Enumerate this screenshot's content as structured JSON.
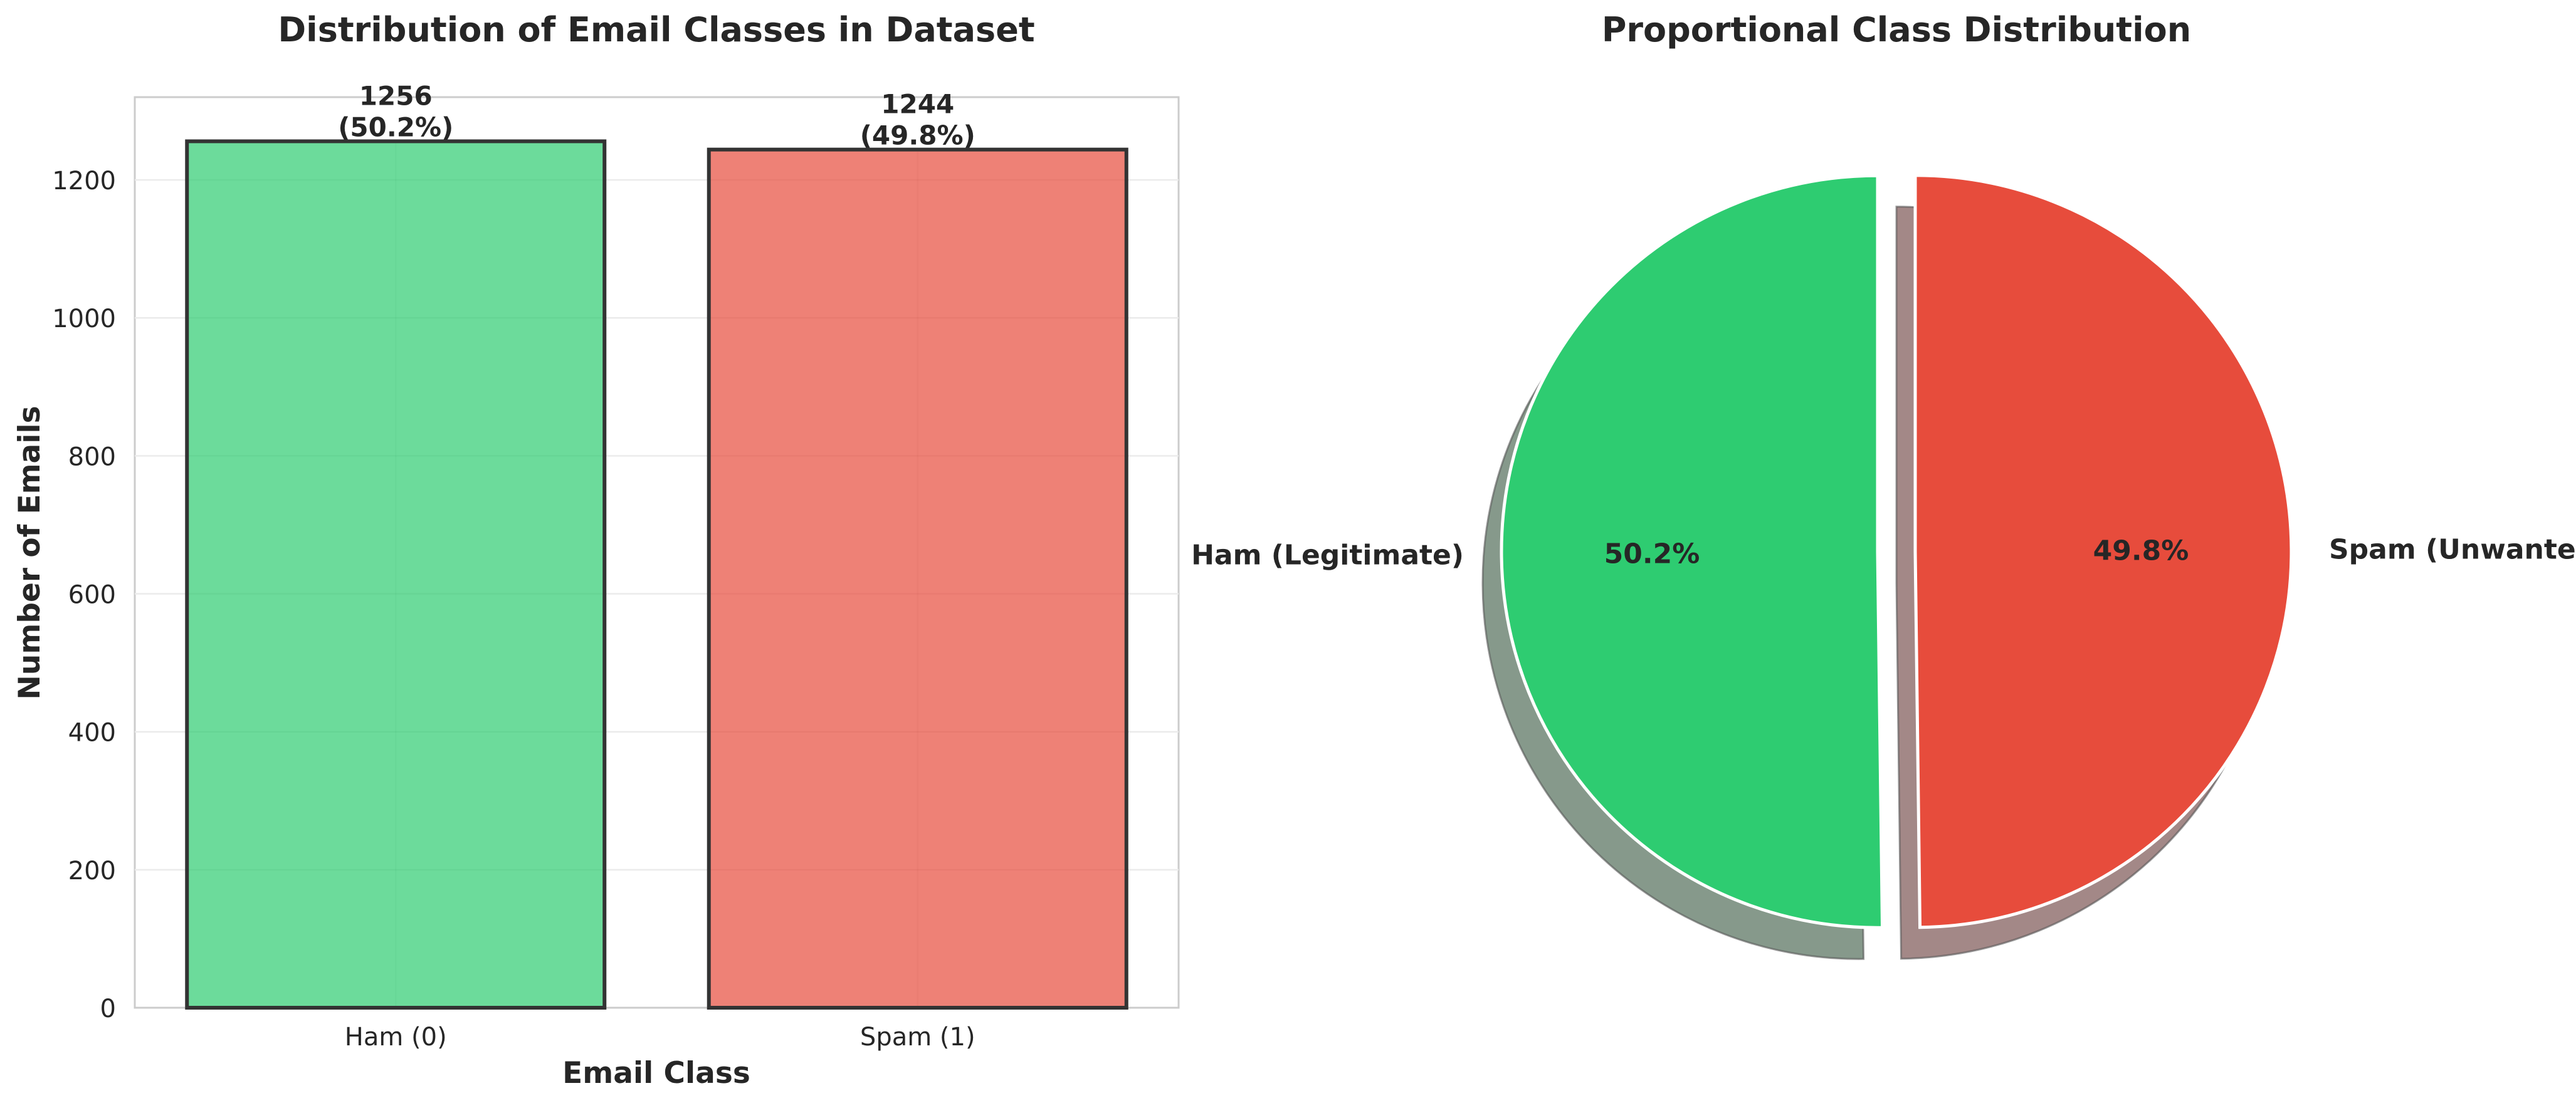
{
  "chart_data": [
    {
      "type": "bar",
      "title": "Distribution of Email Classes in Dataset",
      "xlabel": "Email Class",
      "ylabel": "Number of Emails",
      "categories": [
        "Ham (0)",
        "Spam (1)"
      ],
      "values": [
        1256,
        1244
      ],
      "value_labels": [
        "1256",
        "1244"
      ],
      "percent_labels": [
        "(50.2%)",
        "(49.8%)"
      ],
      "ylim": [
        0,
        1320
      ],
      "yticks": [
        0,
        200,
        400,
        600,
        800,
        1000,
        1200
      ],
      "grid": true,
      "colors": [
        "#2ecc71",
        "#e74c3c"
      ],
      "edge_color": "#333333"
    },
    {
      "type": "pie",
      "title": "Proportional Class Distribution",
      "labels": [
        "Ham (Legitimate)",
        "Spam (Unwanted)"
      ],
      "values": [
        50.2,
        49.8
      ],
      "pct_labels": [
        "50.2%",
        "49.8%"
      ],
      "colors": [
        "#2ecc71",
        "#e74c3c"
      ],
      "shadow_colors": [
        "#86998b",
        "#a38887"
      ],
      "explode": [
        0.05,
        0.05
      ],
      "start_angle": 90,
      "shadow": true
    }
  ]
}
